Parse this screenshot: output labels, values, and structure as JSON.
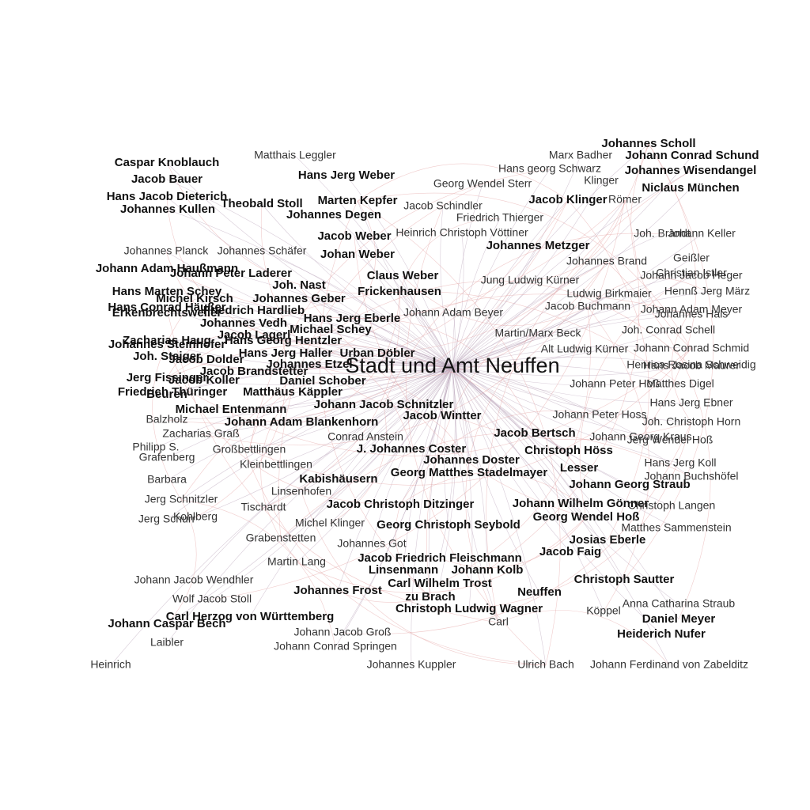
{
  "graph": {
    "hub": "Stadt und Amt Neuffen",
    "colors": {
      "edge_primary": "#e3a3a3",
      "edge_secondary": "#b8a3b8",
      "label_bold": "#111111",
      "label_regular": "#333333",
      "background": "#ffffff"
    },
    "bold_labels": [
      "Caspar Knoblauch",
      "Jacob Bauer",
      "Hans Jacob Dieterich",
      "Johannes Kullen",
      "Theobald Stoll",
      "Hans Jerg Weber",
      "Marten Kepfer",
      "Johannes Degen",
      "Jacob Weber",
      "Johan Weber",
      "Johann Adam Haußmann",
      "Johann Peter Laderer",
      "Claus Weber",
      "Frickenhausen",
      "Joh. Nast",
      "Hans Marten Schey",
      "Michel Kirsch",
      "Johannes Geber",
      "Hans Conrad Häußer",
      "Friedrich Hardlieb",
      "Hans Jerg Eberle",
      "Erkenbrechtsweiler",
      "Johannes Vedh",
      "Michael Schey",
      "Jacob Lagerl",
      "Zacharias Haug",
      "Johannes Steinhofer",
      "Hans Georg Hentzler",
      "Joh. Staiger",
      "Hans Jerg Haller",
      "Urban Döbler",
      "Jacob Dolder",
      "Johannes Etzel",
      "Jacob Brandstetter",
      "Jerg Fissinger",
      "Jacob Koller",
      "Daniel Schober",
      "Friedrich Thüringer",
      "Matthäus Käppler",
      "Beuren",
      "Michael Entenmann",
      "Johann Jacob Schnitzler",
      "Johann Adam Blankenhorn",
      "Jacob Wintter",
      "J. Johannes Coster",
      "Johannes Doster",
      "Georg Matthes Stadelmayer",
      "Kabishäusern",
      "Jacob Christoph Ditzinger",
      "Georg Christoph Seybold",
      "Jacob Friedrich Fleischmann",
      "Linsenmann",
      "Johann Kolb",
      "Johannes Frost",
      "Carl Wilhelm Trost",
      "zu Brach",
      "Christoph Ludwig Wagner",
      "Carl Herzog von Württemberg",
      "Johann Caspar Bech",
      "Johann Conrad Schund",
      "Johannes Wisendangel",
      "Niclaus München",
      "Jacob Klinger",
      "Johannes Metzger",
      "Jacob Bertsch",
      "Christoph Höss",
      "Lesser",
      "Johann Georg Straub",
      "Johann Wilhelm Gönner",
      "Georg Wendel Hoß",
      "Josias Eberle",
      "Jacob Faig",
      "Christoph Sautter",
      "Neuffen",
      "Daniel Meyer",
      "Heiderich Nufer",
      "Johannes Scholl"
    ],
    "regular_labels": [
      "Matthais Leggler",
      "Hans georg Schwarz",
      "Marx Badher",
      "Georg Wendel Sterr",
      "Klinger",
      "Jacob Schindler",
      "Römer",
      "Friedrich Thierger",
      "Heinrich Christoph Vöttiner",
      "Johannes Planck",
      "Johannes Schäfer",
      "Joh. Brandt",
      "Johann Keller",
      "Johannes Brand",
      "Geißler",
      "Christian Istler",
      "Johann Jacob Heger",
      "Jung Ludwig Kürner",
      "Ludwig Birkmaier",
      "Hennß Jerg März",
      "Jacob Buchmann",
      "Johann Adam Meyer",
      "Johann Adam Beyer",
      "Johannes Hals",
      "Joh. Conrad Schell",
      "Martin/Marx Beck",
      "Alt Ludwig Kürner",
      "Johann Conrad Schmid",
      "Henrica Rosina Schweidig",
      "Hans Jacob Maurer",
      "Johann Peter Hoß",
      "Matthes Digel",
      "Hans Jerg Ebner",
      "Johann Peter Hoss",
      "Joh. Christoph Horn",
      "Balzholz",
      "Conrad Anstein",
      "Johann Georg Kraus",
      "Jerg Wendel Hoß",
      "Zacharias Graß",
      "Philipp S.",
      "Großbettlingen",
      "Grafenberg",
      "Kleinbettlingen",
      "Hans Jerg Koll",
      "Johann Buchshöfel",
      "Barbara",
      "Linsenhofen",
      "Jerg Schnitzler",
      "Tischardt",
      "Christoph Langen",
      "Kohlberg",
      "Jerg Schurr",
      "Michel Klinger",
      "Matthes Sammenstein",
      "Grabenstetten",
      "Johannes Got",
      "Martin Lang",
      "Johann Jacob Wendhler",
      "Wolf Jacob Stoll",
      "Anna Catharina Straub",
      "Köppel",
      "Carl",
      "Johann Jacob Groß",
      "Laibler",
      "Johann Conrad Springen",
      "Heinrich",
      "Johann Ferdinand von Zabelditz",
      "Johannes Kuppler",
      "Ulrich Bach"
    ]
  }
}
